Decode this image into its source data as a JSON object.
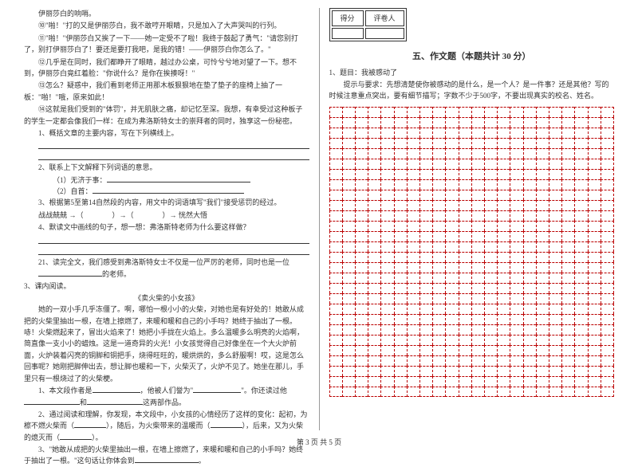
{
  "left": {
    "p1": "伊丽莎白的响哨。",
    "p2": "⑩\"啪！\"打的又是伊丽莎白，我不敢哼开眼睛，只是加入了大声哭叫的行列。",
    "p3": "⑪\"啪！\"伊丽莎白又挨了一下——她一定受不了啦！我终于鼓起了勇气：\"请您别打了，别打伊丽莎白了！要还是要打我吧，是我的错！——伊丽莎白你怎么了。\"",
    "p4": "⑫几乎是在同时，我们都睁开了眼睛，越过办公桌，可怜兮兮地对望了一下。想不到，伊丽莎白竟红着脸：\"你说什么？是你在挨揍呀！\"",
    "p5": "⑬怎么？疑惑中，我们看到老师正用那木板狠狠地在垫了垫子的座椅上抽了一板：\"啪！\"哦，原来如此！",
    "p6": "⑭这就是我们受到的\"体罚\"，并无肌肤之痛，却记忆至深。我想，有幸受过这种板子的学生一定都会像我们一样：在成为弗洛斯特女士的崇拜者的同时，独享这一份秘密。",
    "q1": "1、概括文章的主要内容，写在下列横线上。",
    "q2": "2、联系上下文解释下列词语的意思。",
    "q2a": "（1）无济于事：",
    "q2b": "（2）自首：",
    "q3": "3、根据第5至第14自然段的内容，用文中的词语填写\"我们\"接受惩罚的经过。",
    "q3line": "战战兢兢 →（　　　　）→（　　　　）→ 恍然大悟",
    "q4": "4、默读文中画线的句子，想一想：弗洛斯特老师为什么要这样做？",
    "q5": "21、读完全文，我们感受到弗洛斯特女士不仅是一位严厉的老师，同时也是一位",
    "q5b": "的老师。",
    "s3": "3、课内阅读。",
    "title2": "《卖火柴的小女孩》",
    "p7": "她的一双小手几乎冻僵了。啊，哪怕一根小小的火柴，对她也是有好处的！她敢从成把的火柴里抽出一根，在墙上擦燃了，来暖和暖和自己的小手吗？她终于抽出了一根。哧！火柴燃起来了，冒出火焰来了！她把小手拢在火焰上。多么温暖多么明亮的火焰啊，简直像一支小小的蜡烛。这是一道奇异的火光！小女孩觉得自己好像坐在一个大火炉前面，火炉装着闪亮的铜脚和铜把手，烧得旺旺的，暖烘烘的，多么舒服啊！哎，这是怎么回事呢？她刚把脚伸出去，想让脚也暖和一下，火柴灭了，火炉不见了。她坐在那儿，手里只有一根烧过了的火柴梗。",
    "r1a": "1、本文段作者是",
    "r1b": "，他被人们誉为\"",
    "r1c": "\"。你还读过他",
    "r1d": "和",
    "r1e": "这两部作品。",
    "r2a": "2、通过阅读和理解，你发现，本文段中，小女孩的心情经历了这样的变化：起初，为檫不燃火柴而（",
    "r2b": "），随后，为火柴带来的温暖而（",
    "r2c": "），后来，又为火柴的熄灭而（",
    "r2d": "）。",
    "r3a": "3、\"她敢从成把的火柴里抽出一根，在墙上擦燃了，来暖和暖和自己的小手吗？她终于抽出了一根。\"这句话让你体会到",
    "r3b": "。"
  },
  "right": {
    "score1": "得分",
    "score2": "评卷人",
    "title": "五、作文题（本题共计 30 分）",
    "prompt1": "1、题目：我被感动了",
    "prompt2": "提示与要求：先想清楚使你被感动的是什么，是一个人？是一件事？还是其他？写的时候注意重点突出，要有细节描写；字数不少于500字，不要出现真实的校名、姓名。",
    "grid": {
      "rows": 28,
      "cols": 22
    }
  },
  "footer": "第 3 页 共 5 页"
}
